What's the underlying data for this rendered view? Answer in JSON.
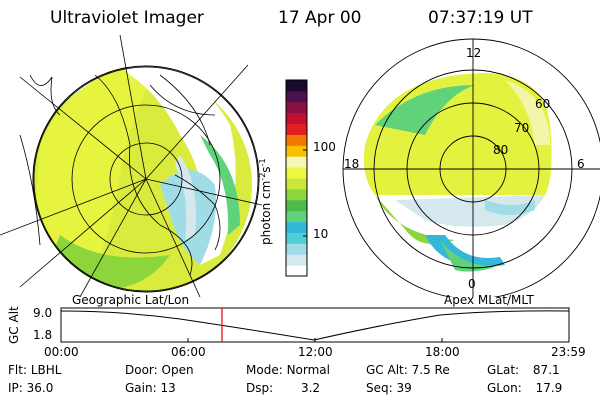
{
  "header": {
    "title": "Ultraviolet Imager",
    "date": "17 Apr 00",
    "time": "07:37:19 UT"
  },
  "colorbar": {
    "label_main": "photon cm",
    "label_exp1": "-2",
    "label_mid": "s",
    "label_exp2": "-1",
    "ticks": [
      "100",
      "10"
    ],
    "colors": [
      "#ffffff",
      "#d4e8ee",
      "#9fdce6",
      "#4ecfd6",
      "#35b8d8",
      "#5fd27a",
      "#4cbb49",
      "#8cd63c",
      "#c9e63a",
      "#ecf73f",
      "#f5f8b6",
      "#f8c000",
      "#f17800",
      "#e02020",
      "#c01030",
      "#8a1040",
      "#4a1050",
      "#1a0a30"
    ]
  },
  "polar_plot": {
    "lat_labels": [
      "60",
      "70",
      "80"
    ],
    "mlt_labels": {
      "top": "12",
      "left": "18",
      "right": "6",
      "bottom": "0"
    }
  },
  "timeline": {
    "left_title": "Geographic Lat/Lon",
    "right_title": "Apex MLat/MLT",
    "ylabel": "GC Alt",
    "yticks": [
      "9.0",
      "1.8"
    ],
    "xticks": [
      "00:00",
      "06:00",
      "12:00",
      "18:00",
      "23:59"
    ],
    "marker_time": "07:37:19"
  },
  "info": {
    "flt_label": "Flt:",
    "flt_value": "LBHL",
    "ip_label": "IP:",
    "ip_value": "36.0",
    "door_label": "Door:",
    "door_value": "Open",
    "gain_label": "Gain:",
    "gain_value": "13",
    "mode_label": "Mode:",
    "mode_value": "Normal",
    "dsp_label": "Dsp:",
    "dsp_value": "3.2",
    "gcalt_label": "GC Alt:",
    "gcalt_value": "7.5 Re",
    "seq_label": "Seq:",
    "seq_value": "39",
    "glat_label": "GLat:",
    "glat_value": "87.1",
    "glon_label": "GLon:",
    "glon_value": "17.9"
  }
}
